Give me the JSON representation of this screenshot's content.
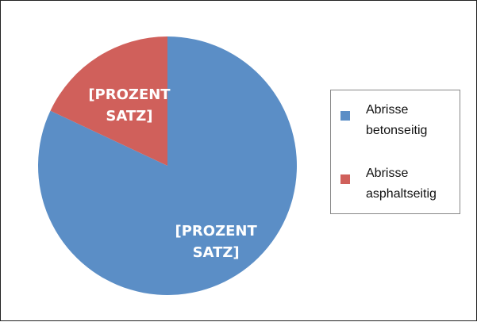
{
  "chart_data": {
    "type": "pie",
    "categories": [
      "Abrisse betonseitig",
      "Abrisse asphaltseitig"
    ],
    "values": [
      82,
      18
    ],
    "value_labels": [
      "[PROZENT SATZ]",
      "[PROZENT SATZ]"
    ],
    "colors": [
      "#5b8ec6",
      "#d0605b"
    ],
    "legend": "right"
  }
}
